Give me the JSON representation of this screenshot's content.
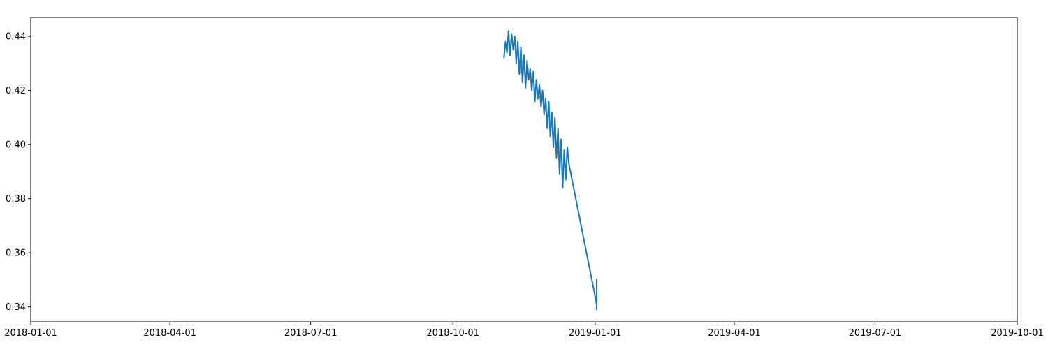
{
  "chart_data": {
    "type": "line",
    "title": "",
    "xlabel": "",
    "ylabel": "",
    "x_axis": {
      "type": "date",
      "range": [
        "2018-01-01",
        "2019-10-01"
      ],
      "ticks": [
        "2018-01-01",
        "2018-04-01",
        "2018-07-01",
        "2018-10-01",
        "2019-01-01",
        "2019-04-01",
        "2019-07-01",
        "2019-10-01"
      ]
    },
    "y_axis": {
      "range": [
        0.3345,
        0.447
      ],
      "ticks": [
        0.34,
        0.36,
        0.38,
        0.4,
        0.42,
        0.44
      ],
      "tick_labels": [
        "0.34",
        "0.36",
        "0.38",
        "0.40",
        "0.42",
        "0.44"
      ]
    },
    "grid": false,
    "legend": "none",
    "series": [
      {
        "color": "#1f77b4",
        "x": [
          "2018-11-03",
          "2018-11-04",
          "2018-11-05",
          "2018-11-06",
          "2018-11-07",
          "2018-11-08",
          "2018-11-09",
          "2018-11-10",
          "2018-11-11",
          "2018-11-12",
          "2018-11-13",
          "2018-11-14",
          "2018-11-15",
          "2018-11-16",
          "2018-11-17",
          "2018-11-18",
          "2018-11-19",
          "2018-11-20",
          "2018-11-21",
          "2018-11-22",
          "2018-11-23",
          "2018-11-24",
          "2018-11-25",
          "2018-11-26",
          "2018-11-27",
          "2018-11-28",
          "2018-11-29",
          "2018-11-30",
          "2018-12-01",
          "2018-12-02",
          "2018-12-03",
          "2018-12-04",
          "2018-12-05",
          "2018-12-06",
          "2018-12-07",
          "2018-12-08",
          "2018-12-09",
          "2018-12-10",
          "2018-12-11",
          "2018-12-12",
          "2018-12-13",
          "2018-12-14",
          "2018-12-15",
          "2019-01-02",
          "2019-01-02",
          "2019-01-02",
          "2019-01-02",
          "2019-01-02"
        ],
        "y": [
          0.432,
          0.438,
          0.434,
          0.442,
          0.433,
          0.441,
          0.435,
          0.44,
          0.43,
          0.438,
          0.426,
          0.436,
          0.423,
          0.433,
          0.421,
          0.431,
          0.424,
          0.428,
          0.42,
          0.427,
          0.416,
          0.424,
          0.417,
          0.422,
          0.414,
          0.42,
          0.411,
          0.417,
          0.406,
          0.416,
          0.403,
          0.412,
          0.399,
          0.41,
          0.395,
          0.406,
          0.389,
          0.402,
          0.384,
          0.398,
          0.387,
          0.399,
          0.393,
          0.341,
          0.35,
          0.339,
          0.349,
          0.342
        ]
      }
    ]
  }
}
